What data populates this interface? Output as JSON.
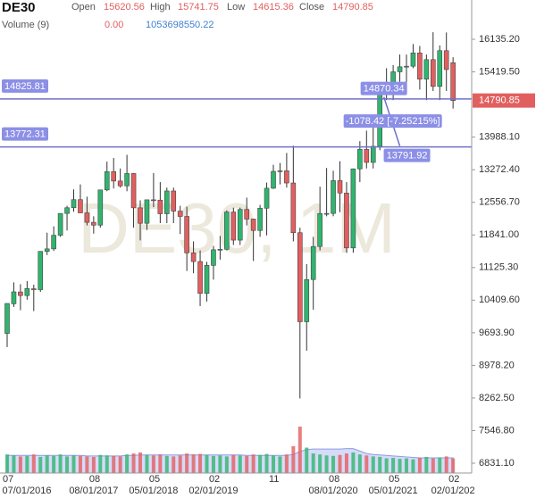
{
  "chart_data": {
    "type": "candlestick",
    "title": "DE30",
    "watermark": "DE30, 1M",
    "header_labels": {
      "open": "Open",
      "high": "High",
      "low": "Low",
      "close": "Close",
      "volume": "Volume (9)"
    },
    "volume_header_values": [
      {
        "value": 0,
        "label": "0.00"
      },
      1053698550.22
    ],
    "categories": [
      "07",
      null,
      null,
      null,
      null,
      null,
      null,
      null,
      null,
      null,
      null,
      null,
      null,
      "08",
      null,
      null,
      null,
      null,
      null,
      null,
      null,
      null,
      "05",
      null,
      null,
      null,
      null,
      null,
      null,
      null,
      null,
      "02",
      null,
      null,
      null,
      null,
      null,
      null,
      null,
      null,
      "11",
      null,
      null,
      null,
      null,
      null,
      null,
      null,
      null,
      "08",
      null,
      null,
      null,
      null,
      null,
      null,
      null,
      null,
      "05",
      null,
      null,
      null,
      null,
      null,
      null,
      null,
      null,
      "02"
    ],
    "date_labels": [
      "07/01/2016",
      null,
      null,
      null,
      null,
      null,
      null,
      null,
      null,
      null,
      null,
      null,
      null,
      "08/01/2017",
      null,
      null,
      null,
      null,
      null,
      null,
      null,
      null,
      "05/01/2018",
      null,
      null,
      null,
      null,
      null,
      null,
      null,
      null,
      "02/01/2019",
      null,
      null,
      null,
      null,
      null,
      null,
      null,
      null,
      null,
      null,
      null,
      null,
      null,
      null,
      null,
      null,
      null,
      "08/01/2020",
      null,
      null,
      null,
      null,
      null,
      null,
      null,
      null,
      "05/01/2021",
      null,
      null,
      null,
      null,
      null,
      null,
      null,
      null,
      "02/01/202"
    ],
    "open": [
      9680,
      10330,
      10590,
      10510,
      10660,
      10640,
      11480,
      11535,
      11834,
      12313,
      12438,
      12615,
      12325,
      12118,
      12056,
      12829,
      13230,
      13024,
      12918,
      13189,
      12436,
      12097,
      12612,
      12605,
      12306,
      12806,
      12364,
      12247,
      11447,
      11257,
      10559,
      11173,
      11516,
      11526,
      12344,
      11727,
      12399,
      12189,
      11939,
      12428,
      12866,
      13236,
      13249,
      12981,
      11890,
      9936,
      10862,
      11587,
      12311,
      12313,
      13033,
      12761,
      11556,
      13291,
      13719,
      13433,
      13786,
      15008,
      15136,
      15421,
      15531,
      15544,
      15835,
      15260,
      15688,
      15100,
      15885,
      15620.56
    ],
    "high": [
      10340,
      10800,
      10760,
      10830,
      10750,
      11480,
      11890,
      12030,
      12300,
      12480,
      12840,
      12950,
      12680,
      12250,
      12830,
      13450,
      13530,
      13300,
      13600,
      13200,
      12600,
      12600,
      13200,
      13000,
      12880,
      12880,
      12480,
      12460,
      11700,
      11500,
      11250,
      11600,
      11820,
      12380,
      12440,
      12440,
      12660,
      12200,
      12500,
      12990,
      13380,
      13420,
      13640,
      13800,
      12000,
      11200,
      11800,
      12900,
      13310,
      13250,
      13460,
      13000,
      13300,
      13900,
      14130,
      14200,
      15000,
      15500,
      15570,
      15800,
      15800,
      16030,
      15990,
      15800,
      16290,
      16000,
      16285,
      15741.75
    ],
    "low": [
      9380,
      10260,
      10190,
      10420,
      10170,
      10590,
      11400,
      11490,
      11800,
      11940,
      12350,
      12320,
      12050,
      11870,
      12000,
      12800,
      12860,
      12880,
      12800,
      12000,
      11720,
      11950,
      12450,
      12100,
      12100,
      12100,
      11860,
      11050,
      11000,
      10280,
      10380,
      10860,
      11300,
      11500,
      11620,
      11620,
      12050,
      11270,
      11800,
      11830,
      12850,
      12950,
      12880,
      11700,
      8255,
      9300,
      10200,
      11500,
      12250,
      12250,
      12340,
      11450,
      11450,
      13000,
      13300,
      13300,
      13700,
      14800,
      14800,
      15200,
      15000,
      15500,
      15030,
      14800,
      15000,
      14800,
      15000,
      14615.36
    ],
    "close": [
      10337,
      10592,
      10511,
      10665,
      10640,
      11481,
      11535,
      11834,
      12313,
      12438,
      12615,
      12325,
      12118,
      12056,
      12829,
      13230,
      13024,
      12918,
      13189,
      12436,
      12097,
      12612,
      12605,
      12306,
      12806,
      12364,
      12247,
      11447,
      11257,
      10559,
      11173,
      11516,
      11526,
      12344,
      11727,
      12399,
      12189,
      11939,
      12428,
      12866,
      13236,
      13249,
      12981,
      11890,
      9936,
      10862,
      11587,
      12311,
      12313,
      13033,
      12761,
      11556,
      13291,
      13719,
      13433,
      13786,
      15008,
      15136,
      15421,
      15531,
      15544,
      15835,
      15260,
      15688,
      15100,
      15885,
      15471,
      14790.85
    ],
    "volume": [
      38,
      36,
      34,
      35,
      38,
      33,
      36,
      35,
      38,
      34,
      36,
      35,
      34,
      33,
      37,
      36,
      35,
      34,
      38,
      40,
      42,
      37,
      36,
      38,
      35,
      34,
      36,
      40,
      38,
      39,
      37,
      35,
      36,
      34,
      37,
      36,
      35,
      38,
      37,
      39,
      36,
      34,
      38,
      55,
      95,
      52,
      40,
      38,
      36,
      35,
      37,
      40,
      42,
      38,
      36,
      34,
      33,
      30,
      31,
      29,
      30,
      28,
      31,
      33,
      30,
      32,
      34,
      30
    ],
    "volume_ma": [
      36,
      36,
      36,
      36,
      36,
      36,
      36,
      36,
      36,
      36,
      36,
      36,
      35,
      35,
      35,
      35,
      35,
      35,
      36,
      36,
      37,
      37,
      37,
      37,
      37,
      37,
      37,
      37,
      37,
      37,
      37,
      37,
      37,
      37,
      37,
      37,
      36,
      36,
      36,
      36,
      36,
      36,
      36,
      38,
      44,
      48,
      49,
      49,
      49,
      49,
      49,
      50,
      50,
      45,
      40,
      38,
      37,
      36,
      35,
      34,
      33,
      32,
      31,
      31,
      31,
      31,
      31,
      31
    ],
    "ylim": [
      6616,
      16997
    ],
    "yticks": [
      {
        "value": 6831.1,
        "label": "6831.10"
      },
      {
        "value": 7546.8,
        "label": "7546.80"
      },
      {
        "value": 8262.5,
        "label": "8262.50"
      },
      {
        "value": 8978.2,
        "label": "8978.20"
      },
      {
        "value": 9693.9,
        "label": "9693.90"
      },
      {
        "value": 10409.6,
        "label": "10409.60"
      },
      {
        "value": 11125.3,
        "label": "11125.30"
      },
      {
        "value": 11841,
        "label": "11841.00"
      },
      {
        "value": 12556.7,
        "label": "12556.70"
      },
      {
        "value": 13272.4,
        "label": "13272.40"
      },
      {
        "value": 13988.1,
        "label": "13988.10"
      },
      {
        "value": 15419.5,
        "label": "15419.50"
      },
      {
        "value": 16135.2,
        "label": "16135.20"
      }
    ],
    "hlines": [
      {
        "value": 14825.81
      },
      {
        "value": 13772.31
      }
    ],
    "measure": {
      "start": 14870.34,
      "end": 13791.92,
      "change": "-1078.42 [-7.25215%]"
    },
    "up_color": "#2fb56e",
    "down_color": "#e25f5f",
    "line_color": "#6d71c9",
    "volume_ma_color": "#b4bdf0"
  }
}
